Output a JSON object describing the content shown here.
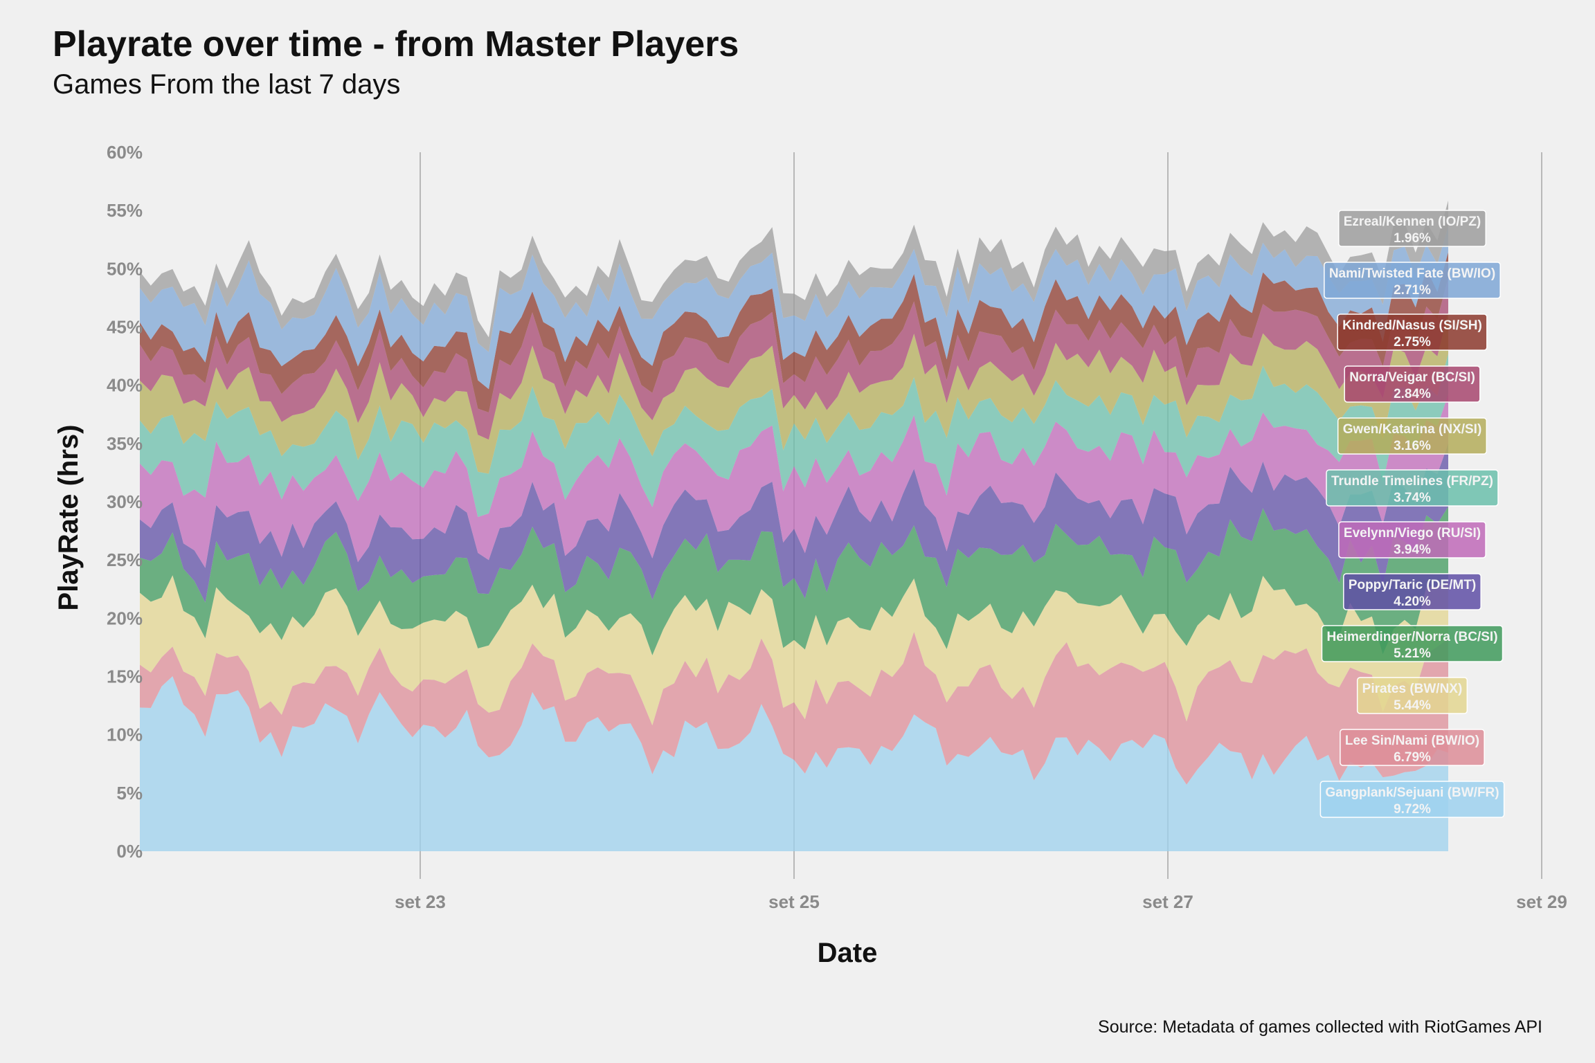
{
  "chart_data": {
    "type": "area",
    "stacked": true,
    "title": "Playrate over time - from Master Players",
    "subtitle": "Games From the last 7 days",
    "xlabel": "Date",
    "ylabel": "PlayRate (hrs)",
    "caption": "Source: Metadata of games collected with RiotGames API",
    "x_range": [
      "2021-09-21T10:00",
      "2021-09-29T00:00"
    ],
    "x_data_range": [
      "2021-09-21T12:00",
      "2021-09-28T12:00"
    ],
    "x_ticks": [
      {
        "date": "2021-09-23",
        "label": "set 23"
      },
      {
        "date": "2021-09-25",
        "label": "set 25"
      },
      {
        "date": "2021-09-27",
        "label": "set 27"
      },
      {
        "date": "2021-09-29",
        "label": "set 29"
      }
    ],
    "ylim": [
      0,
      0.6
    ],
    "y_ticks": [
      0,
      0.05,
      0.1,
      0.15,
      0.2,
      0.25,
      0.3,
      0.35,
      0.4,
      0.45,
      0.5,
      0.55,
      0.6
    ],
    "y_tick_labels": [
      "0%",
      "5%",
      "10%",
      "15%",
      "20%",
      "25%",
      "30%",
      "35%",
      "40%",
      "45%",
      "50%",
      "55%",
      "60%"
    ],
    "grid": "vertical major only",
    "legend": "direct labels at right end",
    "sample_points_per_series": 121,
    "series": [
      {
        "name": "Gangplank/Sejuani (BW/FR)",
        "label_value": "9.72%",
        "color": "#9dd1ee",
        "base": 0.097,
        "start": 0.117,
        "end": 0.072
      },
      {
        "name": "Lee Sin/Nami (BW/IO)",
        "label_value": "6.79%",
        "color": "#dd8d98",
        "base": 0.068,
        "start": 0.028,
        "end": 0.08
      },
      {
        "name": "Pirates (BW/NX)",
        "label_value": "5.44%",
        "color": "#e3d690",
        "base": 0.054,
        "start": 0.055,
        "end": 0.05
      },
      {
        "name": "Heimerdinger/Norra (BC/SI)",
        "label_value": "5.21%",
        "color": "#3f9a5c",
        "base": 0.052,
        "start": 0.04,
        "end": 0.06
      },
      {
        "name": "Poppy/Taric (DE/MT)",
        "label_value": "4.20%",
        "color": "#5f4fa6",
        "base": 0.042,
        "start": 0.032,
        "end": 0.045
      },
      {
        "name": "Evelynn/Viego (RU/SI)",
        "label_value": "3.94%",
        "color": "#c06ab9",
        "base": 0.039,
        "start": 0.045,
        "end": 0.045
      },
      {
        "name": "Trundle Timelines (FR/PZ)",
        "label_value": "3.74%",
        "color": "#6bbfab",
        "base": 0.037,
        "start": 0.04,
        "end": 0.035
      },
      {
        "name": "Gwen/Katarina (NX/SI)",
        "label_value": "3.16%",
        "color": "#b4ad5a",
        "base": 0.032,
        "start": 0.03,
        "end": 0.032
      },
      {
        "name": "Norra/Veigar (BC/SI)",
        "label_value": "2.84%",
        "color": "#a7466f",
        "base": 0.028,
        "start": 0.025,
        "end": 0.028
      },
      {
        "name": "Kindred/Nasus (SI/SH)",
        "label_value": "2.75%",
        "color": "#8c3a2e",
        "base": 0.028,
        "start": 0.02,
        "end": 0.025
      },
      {
        "name": "Nami/Twisted Fate (BW/IO)",
        "label_value": "2.71%",
        "color": "#7fa7d6",
        "base": 0.027,
        "start": 0.035,
        "end": 0.027
      },
      {
        "name": "Ezreal/Kennen (IO/PZ)",
        "label_value": "1.96%",
        "color": "#9e9e9e",
        "base": 0.02,
        "start": 0.015,
        "end": 0.02
      }
    ]
  }
}
